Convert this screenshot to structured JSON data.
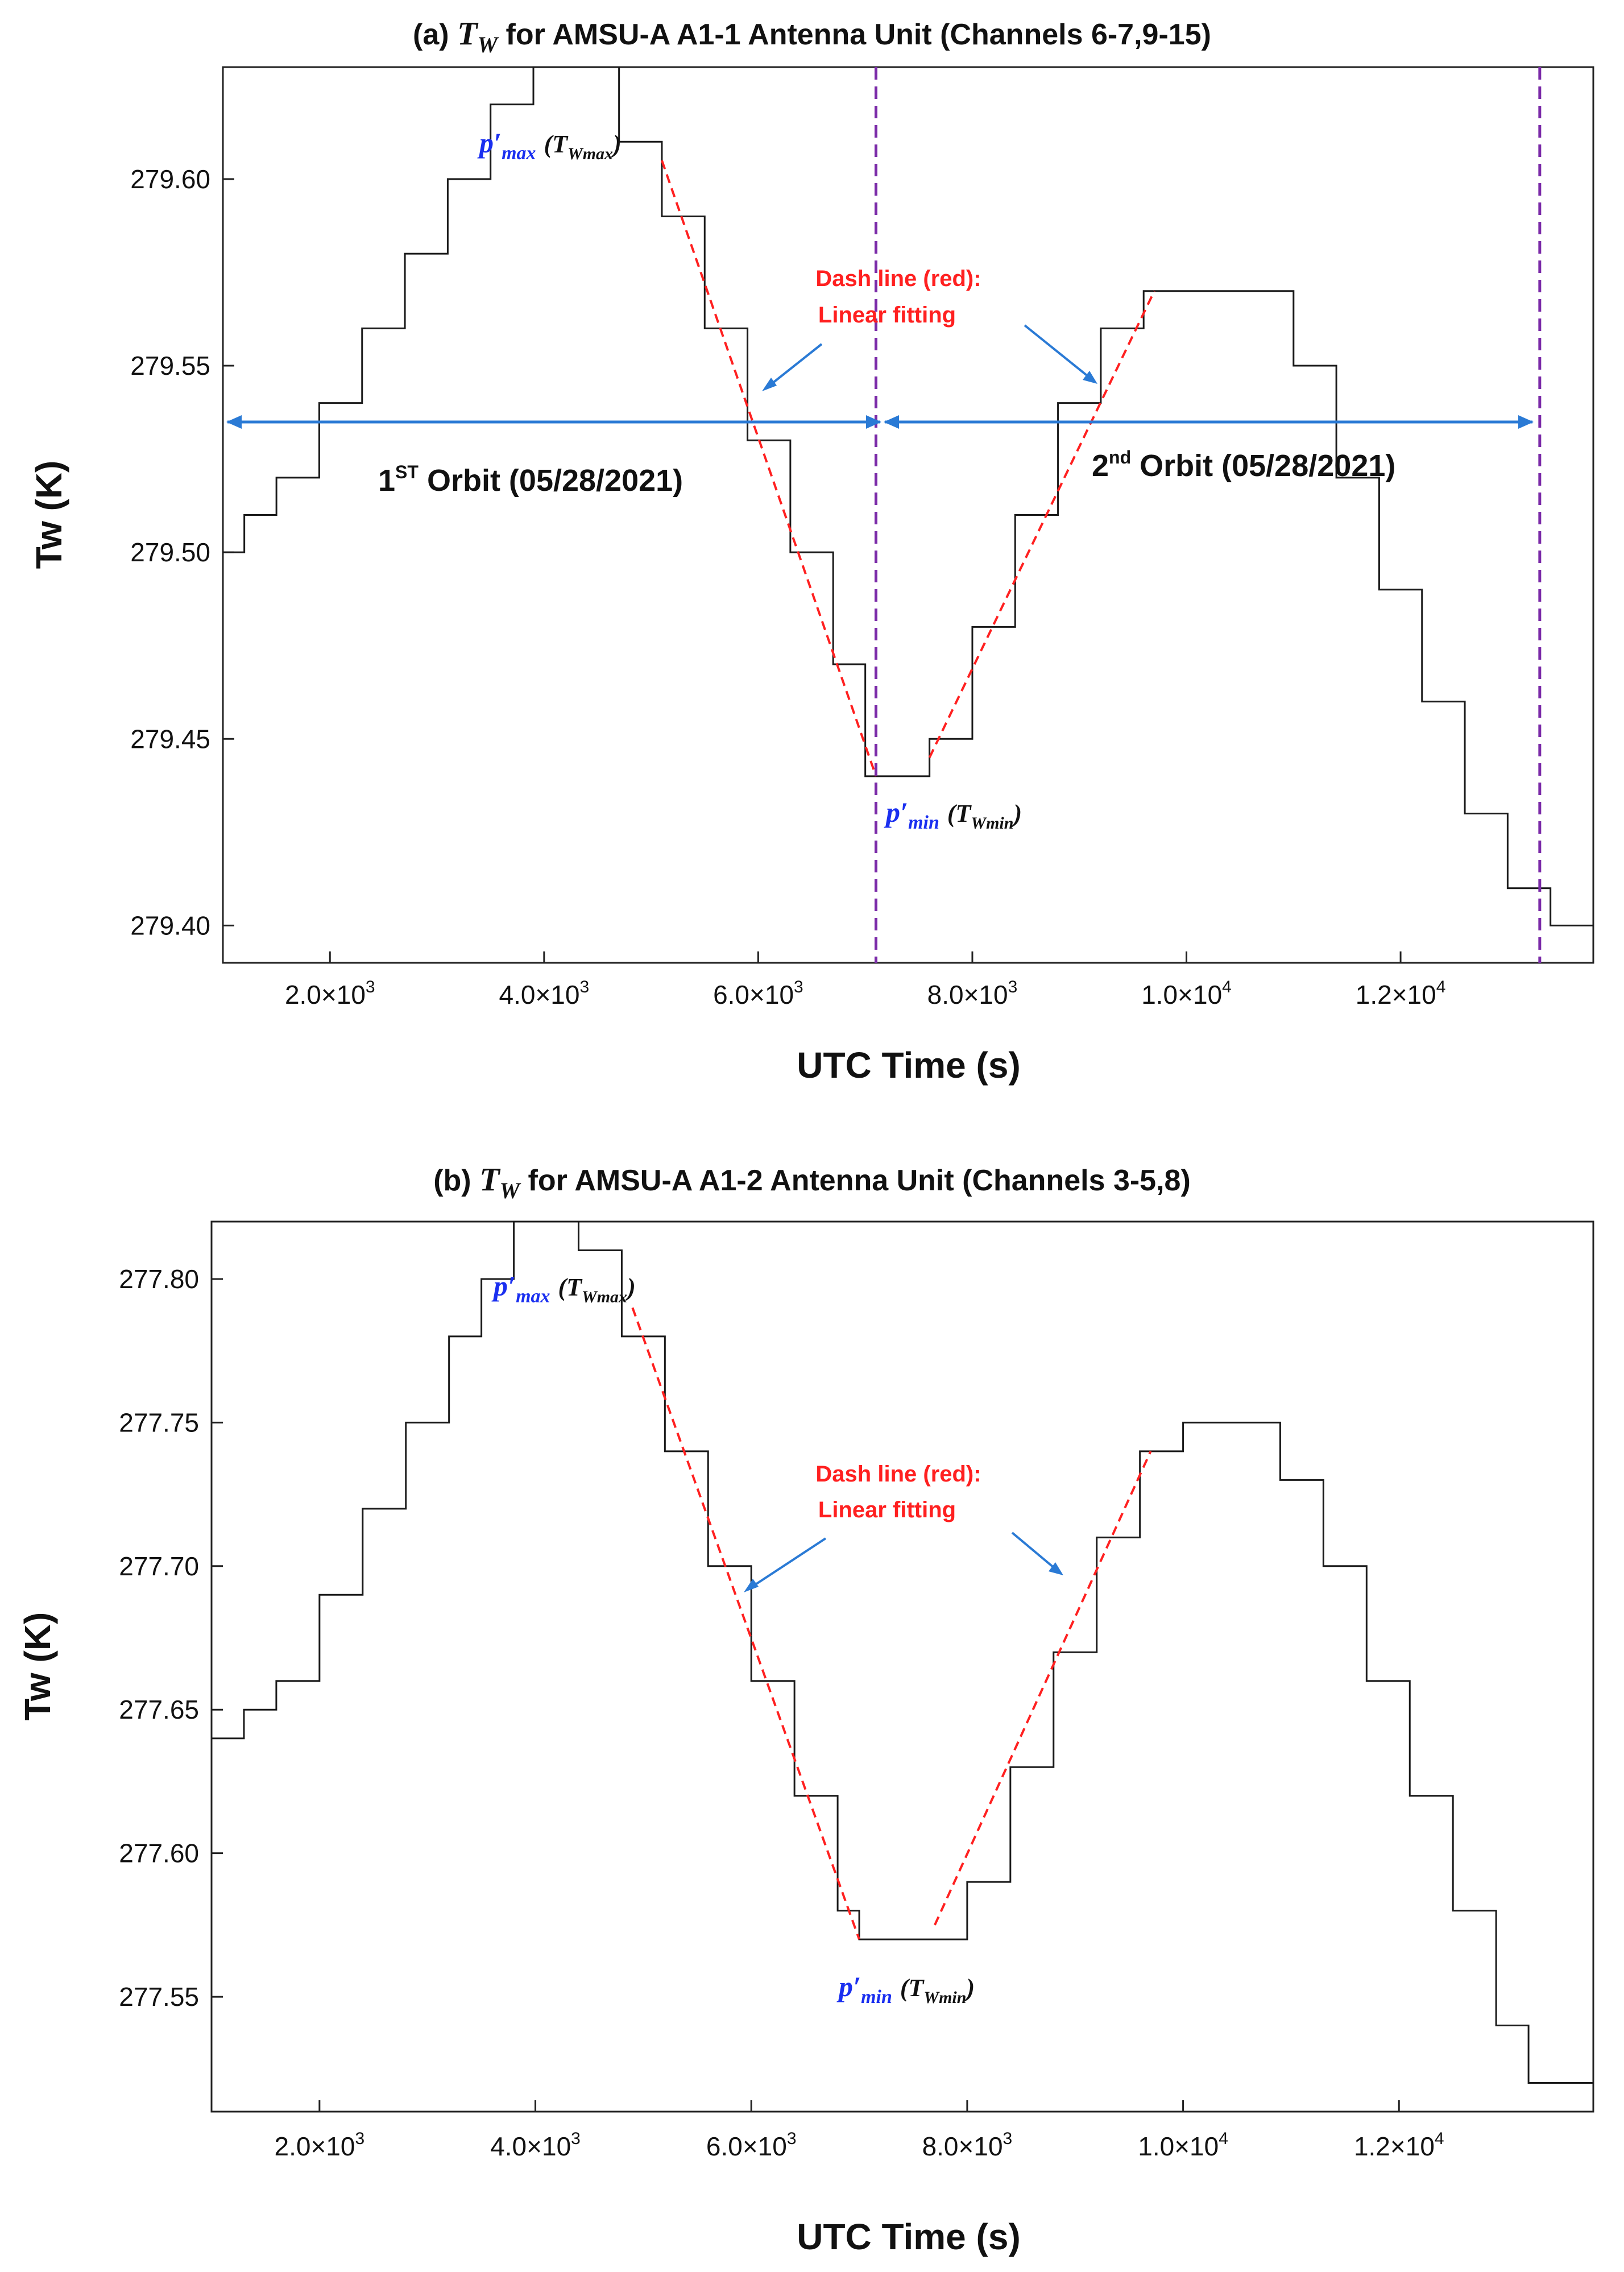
{
  "chart_data": [
    {
      "type": "line",
      "panel_label": "(a)",
      "title_symbol": "T",
      "title_symbol_sub": "W",
      "title_text": "for AMSU-A A1-1 Antenna Unit (Channels 6-7,9-15)",
      "xlabel": "UTC Time (s)",
      "ylabel": "Tw (K)",
      "xlim": [
        1000,
        13800
      ],
      "ylim": [
        279.39,
        279.63
      ],
      "x_ticks": [
        2000,
        4000,
        6000,
        8000,
        10000,
        12000
      ],
      "x_tick_mantissa": [
        "2.0",
        "4.0",
        "6.0",
        "8.0",
        "1.0",
        "1.2"
      ],
      "x_tick_base": [
        "×10",
        "×10",
        "×10",
        "×10",
        "×10",
        "×10"
      ],
      "x_tick_exp": [
        "3",
        "3",
        "3",
        "3",
        "4",
        "4"
      ],
      "y_ticks": [
        279.4,
        279.45,
        279.5,
        279.55,
        279.6
      ],
      "y_tick_labels": [
        "279.40",
        "279.45",
        "279.50",
        "279.55",
        "279.60"
      ],
      "series": [
        {
          "name": "Tw",
          "color": "#1a1a1a",
          "x": [
            1000,
            1200,
            1500,
            1900,
            2300,
            2700,
            3100,
            3500,
            3900,
            4300,
            4700,
            5100,
            5500,
            5900,
            6300,
            6700,
            7000,
            7200,
            7600,
            8000,
            8400,
            8800,
            9200,
            9600,
            10000,
            10500,
            11000,
            11400,
            11800,
            12200,
            12600,
            13000,
            13400,
            13800
          ],
          "y": [
            279.5,
            279.51,
            279.52,
            279.54,
            279.56,
            279.58,
            279.6,
            279.62,
            279.63,
            279.63,
            279.61,
            279.59,
            279.56,
            279.53,
            279.5,
            279.47,
            279.44,
            279.44,
            279.45,
            279.48,
            279.51,
            279.54,
            279.56,
            279.57,
            279.57,
            279.57,
            279.55,
            279.52,
            279.49,
            279.46,
            279.43,
            279.41,
            279.4,
            279.4
          ]
        },
        {
          "name": "Linear fit (descending)",
          "color": "#ff2020",
          "style": "dashed",
          "x": [
            5100,
            7100
          ],
          "y": [
            279.605,
            279.44
          ]
        },
        {
          "name": "Linear fit (ascending)",
          "color": "#ff2020",
          "style": "dashed",
          "x": [
            7600,
            9700
          ],
          "y": [
            279.445,
            279.57
          ]
        }
      ],
      "vlines": [
        7100,
        13300
      ],
      "vline_color": "#7a2aa8",
      "orbit_arrow_y": 279.535,
      "arrow_color": "#2a7ad5",
      "annotations": {
        "dash_line_1": "Dash line (red):",
        "dash_line_2": "Linear fitting",
        "orbit1_pre": "1",
        "orbit1_sup": "ST",
        "orbit1_post": " Orbit (05/28/2021)",
        "orbit2_pre": "2",
        "orbit2_sup": "nd",
        "orbit2_post": " Orbit (05/28/2021)",
        "pmax_p": "p′",
        "pmax_sub": "max",
        "pmax_T": "(T",
        "pmax_Tsub": "Wmax",
        "pmax_close": ")",
        "pmin_p": "p′",
        "pmin_sub": "min",
        "pmin_T": "(T",
        "pmin_Tsub": "Wmin",
        "pmin_close": ")"
      }
    },
    {
      "type": "line",
      "panel_label": "(b)",
      "title_symbol": "T",
      "title_symbol_sub": "W",
      "title_text": "for AMSU-A A1-2 Antenna Unit (Channels 3-5,8)",
      "xlabel": "UTC Time (s)",
      "ylabel": "Tw (K)",
      "xlim": [
        1000,
        13800
      ],
      "ylim": [
        277.51,
        277.82
      ],
      "x_ticks": [
        2000,
        4000,
        6000,
        8000,
        10000,
        12000
      ],
      "x_tick_mantissa": [
        "2.0",
        "4.0",
        "6.0",
        "8.0",
        "1.0",
        "1.2"
      ],
      "x_tick_base": [
        "×10",
        "×10",
        "×10",
        "×10",
        "×10",
        "×10"
      ],
      "x_tick_exp": [
        "3",
        "3",
        "3",
        "3",
        "4",
        "4"
      ],
      "y_ticks": [
        277.55,
        277.6,
        277.65,
        277.7,
        277.75,
        277.8
      ],
      "y_tick_labels": [
        "277.55",
        "277.60",
        "277.65",
        "277.70",
        "277.75",
        "277.80"
      ],
      "series": [
        {
          "name": "Tw",
          "color": "#1a1a1a",
          "x": [
            1000,
            1300,
            1600,
            2000,
            2400,
            2800,
            3200,
            3500,
            3800,
            4100,
            4400,
            4800,
            5200,
            5600,
            6000,
            6400,
            6800,
            7000,
            7300,
            7600,
            8000,
            8400,
            8800,
            9200,
            9600,
            10000,
            10500,
            10900,
            11300,
            11700,
            12100,
            12500,
            12900,
            13200,
            13500,
            13800
          ],
          "y": [
            277.64,
            277.65,
            277.66,
            277.69,
            277.72,
            277.75,
            277.78,
            277.8,
            277.82,
            277.82,
            277.81,
            277.78,
            277.74,
            277.7,
            277.66,
            277.62,
            277.58,
            277.57,
            277.57,
            277.57,
            277.59,
            277.63,
            277.67,
            277.71,
            277.74,
            277.75,
            277.75,
            277.73,
            277.7,
            277.66,
            277.62,
            277.58,
            277.54,
            277.52,
            277.52,
            277.52
          ]
        },
        {
          "name": "Linear fit (descending)",
          "color": "#ff2020",
          "style": "dashed",
          "x": [
            4900,
            7000
          ],
          "y": [
            277.79,
            277.57
          ]
        },
        {
          "name": "Linear fit (ascending)",
          "color": "#ff2020",
          "style": "dashed",
          "x": [
            7700,
            9700
          ],
          "y": [
            277.575,
            277.74
          ]
        }
      ],
      "vlines": [],
      "annotations": {
        "dash_line_1": "Dash line (red):",
        "dash_line_2": "Linear fitting",
        "pmax_p": "p′",
        "pmax_sub": "max",
        "pmax_T": "(T",
        "pmax_Tsub": "Wmax",
        "pmax_close": ")",
        "pmin_p": "p′",
        "pmin_sub": "min",
        "pmin_T": "(T",
        "pmin_Tsub": "Wmin",
        "pmin_close": ")"
      }
    }
  ]
}
